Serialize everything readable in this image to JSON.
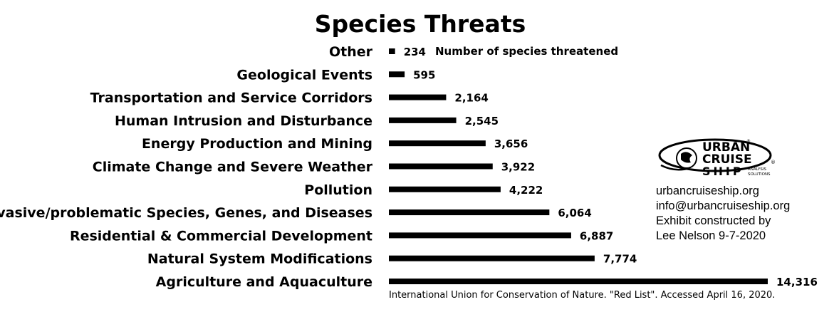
{
  "chart_data": {
    "type": "bar",
    "orientation": "horizontal",
    "title": "Species Threats",
    "series_label": "Number of species threatened",
    "categories": [
      "Other",
      "Geological Events",
      "Transportation and Service Corridors",
      "Human Intrusion and Disturbance",
      "Energy Production and Mining",
      "Climate Change and Severe Weather",
      "Pollution",
      "Invasive/problematic Species, Genes, and Diseases",
      "Residential & Commercial Development",
      "Natural System Modifications",
      "Agriculture and Aquaculture"
    ],
    "values": [
      234,
      595,
      2164,
      2545,
      3656,
      3922,
      4222,
      6064,
      6887,
      7774,
      14316
    ],
    "value_labels": [
      "234",
      "595",
      "2,164",
      "2,545",
      "3,656",
      "3,922",
      "4,222",
      "6,064",
      "6,887",
      "7,774",
      "14,316"
    ],
    "xlim": [
      0,
      14316
    ],
    "grid": false,
    "bar_color": "#000000",
    "source": "International Union for Conservation of Nature. \"Red List\". Accessed April 16, 2020."
  },
  "logo": {
    "line1": "URBAN",
    "line2": "CRUISE",
    "line3": "SHIP",
    "tag1": "ANALYSIS",
    "tag2": "SOLUTIONS",
    "reg": "®"
  },
  "contact": {
    "website": "urbancruiseship.org",
    "email": "info@urbancruiseship.org",
    "credit1": "Exhibit constructed by",
    "credit2": "Lee Nelson 9-7-2020"
  }
}
